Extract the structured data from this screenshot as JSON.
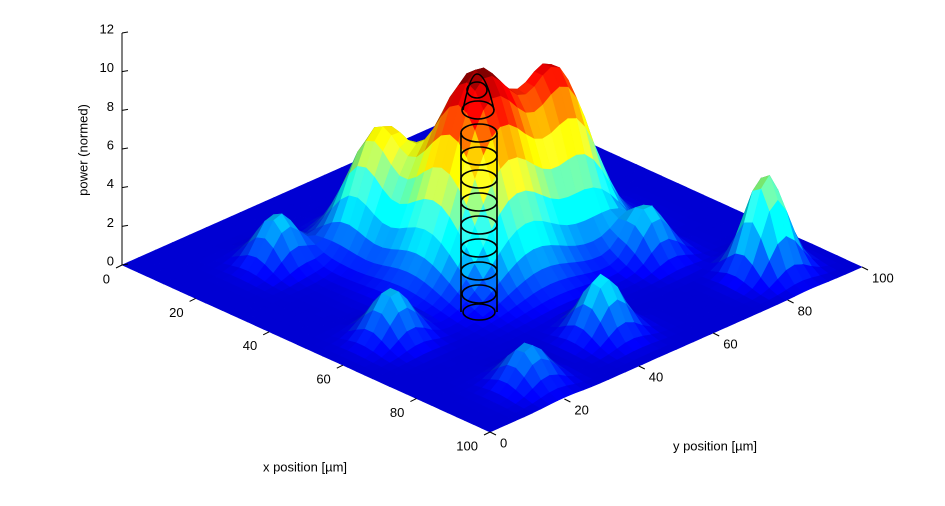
{
  "chart_data": {
    "type": "surface",
    "xlabel": "x position [µm]",
    "ylabel": "y position  [µm]",
    "zlabel": "power (normed)",
    "xlim": [
      0,
      100
    ],
    "ylim": [
      0,
      100
    ],
    "zlim": [
      0,
      12
    ],
    "xticks": [
      0,
      20,
      40,
      60,
      80,
      100
    ],
    "yticks": [
      0,
      20,
      40,
      60,
      80,
      100
    ],
    "zticks": [
      0,
      2,
      4,
      6,
      8,
      10,
      12
    ],
    "clim": [
      0,
      10
    ],
    "colormap": "jet",
    "peaks": [
      {
        "x": 48,
        "y": 48,
        "z": 10,
        "sigma": 9
      },
      {
        "x": 28,
        "y": 41,
        "z": 5.5,
        "sigma": 6
      },
      {
        "x": 49,
        "y": 68,
        "z": 8,
        "sigma": 7
      },
      {
        "x": 88,
        "y": 86,
        "z": 5,
        "sigma": 4
      },
      {
        "x": 20,
        "y": 22,
        "z": 2.5,
        "sigma": 4
      },
      {
        "x": 58,
        "y": 15,
        "z": 2.5,
        "sigma": 4
      },
      {
        "x": 90,
        "y": 20,
        "z": 2,
        "sigma": 4
      },
      {
        "x": 85,
        "y": 45,
        "z": 3,
        "sigma": 4
      },
      {
        "x": 68,
        "y": 74,
        "z": 2.5,
        "sigma": 4
      }
    ]
  }
}
